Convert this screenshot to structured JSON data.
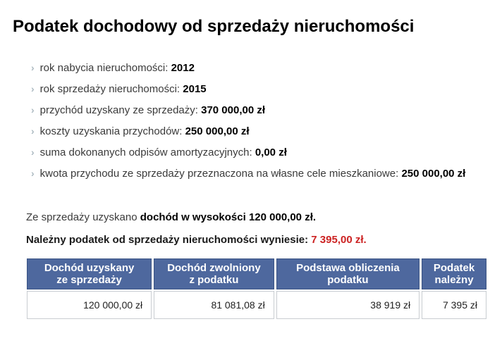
{
  "page": {
    "title": "Podatek dochodowy od sprzedaży nieruchomości"
  },
  "details": {
    "bullet_glyph": "›",
    "items": [
      {
        "label": "rok nabycia nieruchomości: ",
        "value": "2012"
      },
      {
        "label": "rok sprzedaży nieruchomości: ",
        "value": "2015"
      },
      {
        "label": "przychód uzyskany ze sprzedaży: ",
        "value": "370 000,00 zł"
      },
      {
        "label": "koszty uzyskania przychodów: ",
        "value": "250 000,00 zł"
      },
      {
        "label": "suma dokonanych odpisów amortyzacyjnych: ",
        "value": "0,00 zł"
      },
      {
        "label": "kwota przychodu ze sprzedaży przeznaczona na własne cele mieszkaniowe: ",
        "value": "250 000,00 zł"
      }
    ]
  },
  "summary": {
    "income_prefix": "Ze sprzedaży uzyskano ",
    "income_bold": "dochód w wysokości 120 000,00 zł.",
    "tax_prefix": "Należny podatek od sprzedaży nieruchomości wyniesie: ",
    "tax_value": "7 395,00 zł."
  },
  "table": {
    "columns": [
      {
        "header_line1": "Dochód uzyskany",
        "header_line2": "ze sprzedaży",
        "value": "120 000,00 zł"
      },
      {
        "header_line1": "Dochód zwolniony",
        "header_line2": "z podatku",
        "value": "81 081,08 zł"
      },
      {
        "header_line1": "Podstawa obliczenia",
        "header_line2": "podatku",
        "value": "38 919 zł"
      },
      {
        "header_line1": "Podatek",
        "header_line2": "należny",
        "value": "7 395 zł"
      }
    ]
  },
  "colors": {
    "header_blue": "#4e689e",
    "header_border": "#3b5484",
    "tax_red": "#cc2222",
    "bullet_gray": "#adbac2"
  }
}
